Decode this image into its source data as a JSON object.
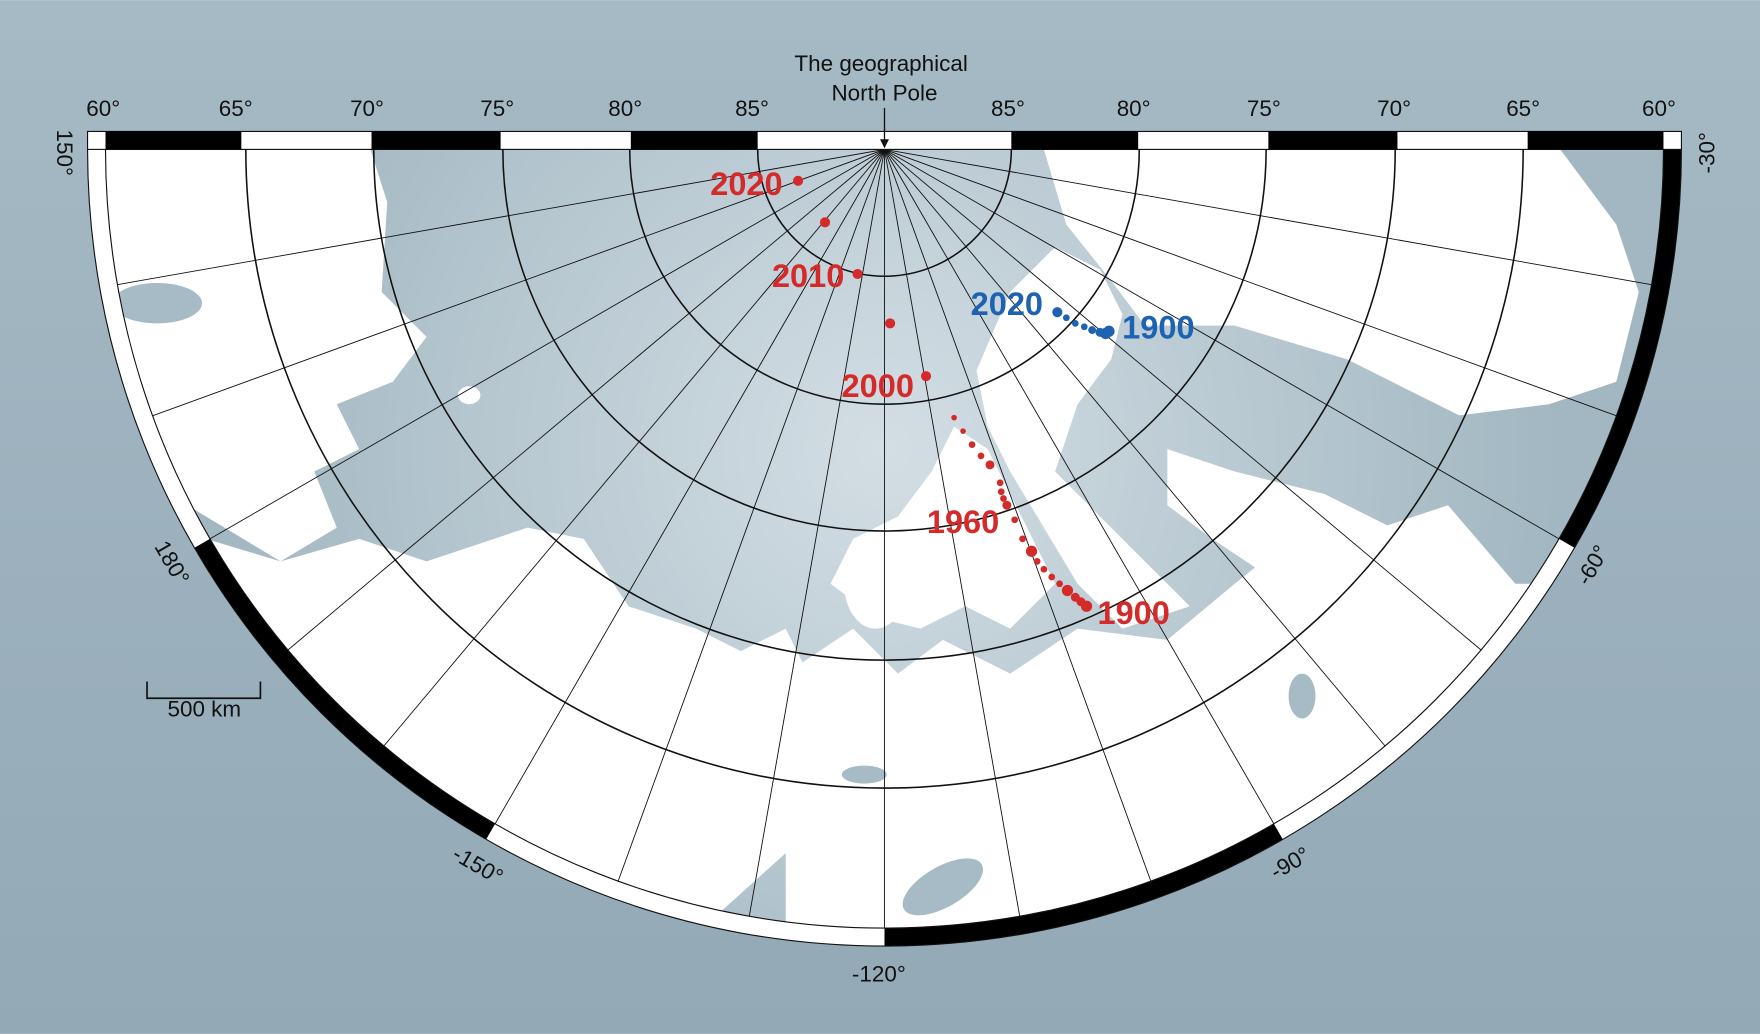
{
  "annotation": {
    "lines": [
      "The geographical",
      "North Pole"
    ]
  },
  "latitude_labels": [
    "60°",
    "65°",
    "70°",
    "75°",
    "80°",
    "85°",
    "85°",
    "80°",
    "75°",
    "70°",
    "65°",
    "60°"
  ],
  "longitude_labels": [
    "150°",
    "180°",
    "-150°",
    "-120°",
    "-90°",
    "-60°",
    "-30°"
  ],
  "scale_bar": {
    "label": "500 km"
  },
  "magnetic_pole_labels": {
    "red": [
      "2020",
      "2010",
      "2000",
      "1960",
      "1900"
    ],
    "blue": [
      "2020",
      "1900"
    ]
  }
}
